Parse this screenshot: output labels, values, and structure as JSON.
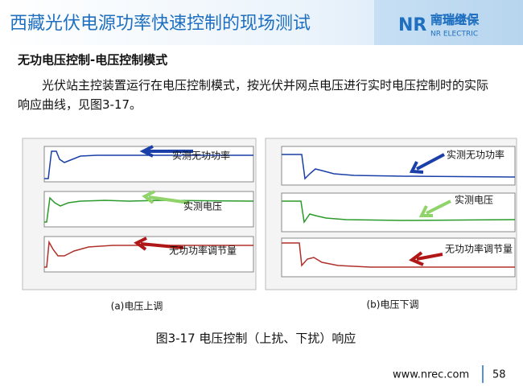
{
  "header": {
    "title": "西藏光伏电源功率快速控制的现场测试",
    "logo_cn": "南瑞继保",
    "logo_en": "NR ELECTRIC"
  },
  "section": {
    "heading": "无功电压控制-电压控制模式",
    "paragraph": "光伏站主控装置运行在电压控制模式，按光伏并网点电压进行实时电压控制时的实际响应曲线，见图3-17。"
  },
  "figures": [
    {
      "annotations": [
        "实测无功功率",
        "实测电压",
        "无功功率调节量"
      ],
      "caption": "(a)电压上调"
    },
    {
      "annotations": [
        "实测无功功率",
        "实测电压",
        "无功功率调节量"
      ],
      "caption": "(b)电压下调"
    }
  ],
  "figure_caption": "图3-17 电压控制（上扰、下扰）响应",
  "footer": {
    "url": "www.nrec.com",
    "page": "58"
  }
}
